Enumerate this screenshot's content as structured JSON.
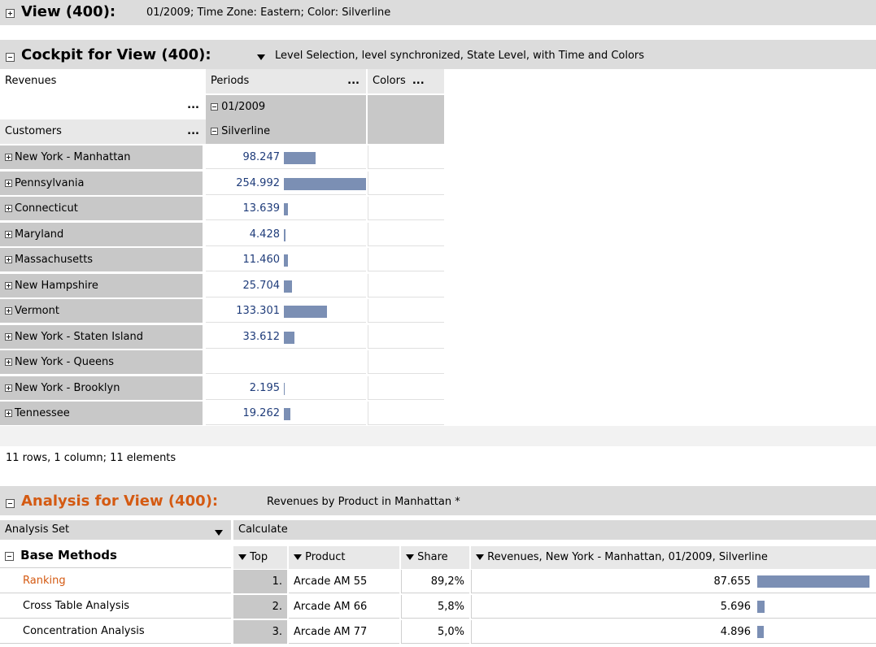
{
  "view_header": {
    "title": "View (400):",
    "info": "01/2009; Time Zone: Eastern; Color: Silverline"
  },
  "cockpit": {
    "title": "Cockpit for View (400):",
    "info": "Level Selection, level synchronized, State Level, with Time and Colors",
    "measure_label": "Revenues",
    "periods_label": "Periods",
    "colors_label": "Colors",
    "period_value": "01/2009",
    "customers_label": "Customers",
    "color_value": "Silverline",
    "ellipsis": "...",
    "max_value": 254992,
    "rows": [
      {
        "label": "New York - Manhattan",
        "value": "98.247",
        "amount": 98247
      },
      {
        "label": "Pennsylvania",
        "value": "254.992",
        "amount": 254992
      },
      {
        "label": "Connecticut",
        "value": "13.639",
        "amount": 13639
      },
      {
        "label": "Maryland",
        "value": "4.428",
        "amount": 4428
      },
      {
        "label": "Massachusetts",
        "value": "11.460",
        "amount": 11460
      },
      {
        "label": "New Hampshire",
        "value": "25.704",
        "amount": 25704
      },
      {
        "label": "Vermont",
        "value": "133.301",
        "amount": 133301
      },
      {
        "label": "New York - Staten Island",
        "value": "33.612",
        "amount": 33612
      },
      {
        "label": "New York - Queens",
        "value": "",
        "amount": 0
      },
      {
        "label": "New York - Brooklyn",
        "value": "2.195",
        "amount": 2195
      },
      {
        "label": "Tennessee",
        "value": "19.262",
        "amount": 19262
      }
    ],
    "status": "11 rows, 1 column; 11 elements"
  },
  "analysis": {
    "title": "Analysis for View (400):",
    "info": "Revenues by Product in Manhattan *",
    "set_label": "Analysis Set",
    "calculate_label": "Calculate",
    "group_label": "Base Methods",
    "col_top": "Top",
    "col_product": "Product",
    "col_share": "Share",
    "col_revenues": "Revenues, New York - Manhattan, 01/2009, Silverline",
    "methods": [
      "Ranking",
      "Cross Table Analysis",
      "Concentration Analysis"
    ],
    "max_value": 87655,
    "rows": [
      {
        "rank": "1.",
        "product": "Arcade AM 55",
        "share": "89,2%",
        "value": "87.655",
        "amount": 87655
      },
      {
        "rank": "2.",
        "product": "Arcade AM 66",
        "share": "5,8%",
        "value": "5.696",
        "amount": 5696
      },
      {
        "rank": "3.",
        "product": "Arcade AM 77",
        "share": "5,0%",
        "value": "4.896",
        "amount": 4896
      }
    ]
  }
}
